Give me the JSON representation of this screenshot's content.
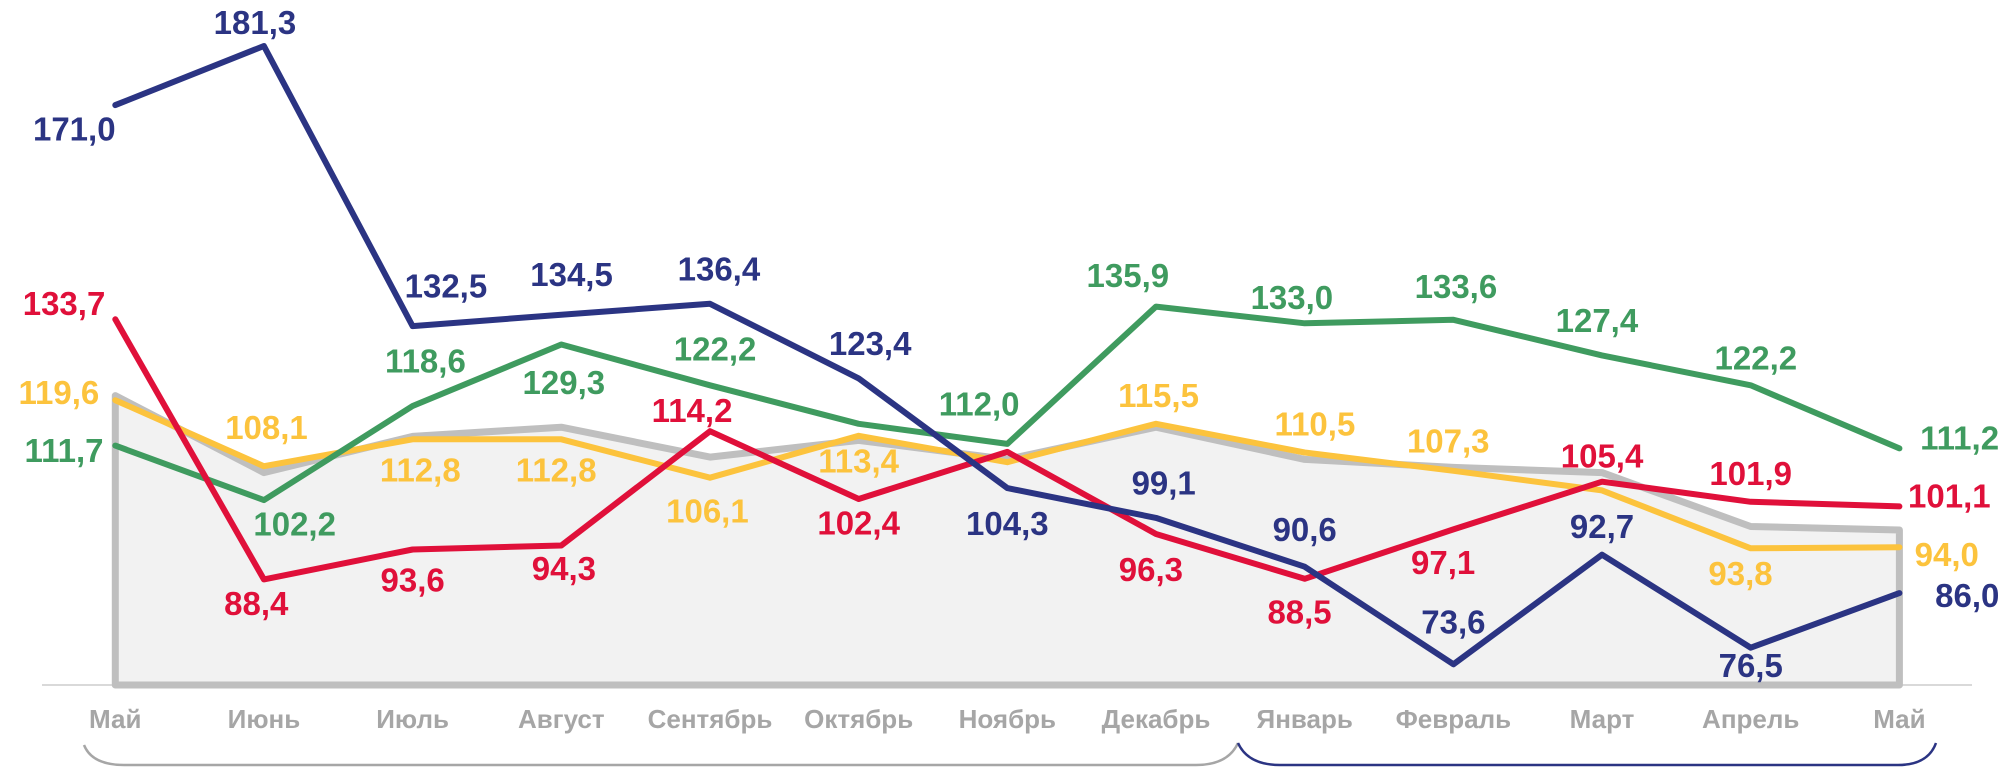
{
  "chart_data": {
    "type": "line",
    "categories": [
      "Май",
      "Июнь",
      "Июль",
      "Август",
      "Сентябрь",
      "Октябрь",
      "Ноябрь",
      "Декабрь",
      "Январь",
      "Февраль",
      "Март",
      "Апрель",
      "Май"
    ],
    "ylim": [
      70,
      190
    ],
    "series": [
      {
        "color": "#bfbfbf",
        "fill": "#f2f2f2",
        "values": [
          120.4,
          107.0,
          113.3,
          114.9,
          109.7,
          112.6,
          109.3,
          114.9,
          109.3,
          107.9,
          107.0,
          97.6,
          97.0
        ]
      },
      {
        "color": "#fcc33d",
        "values": [
          119.6,
          108.1,
          112.8,
          112.8,
          106.1,
          113.4,
          108.8,
          115.5,
          110.5,
          107.3,
          103.9,
          93.8,
          94.0
        ],
        "value_labels": [
          "119,6",
          "108,1",
          "112,8",
          "112,8",
          "106,1",
          "113,4",
          null,
          "115,5",
          "110,5",
          "107,3",
          null,
          "93,8",
          "94,0"
        ]
      },
      {
        "color": "#3f9b5f",
        "values": [
          111.7,
          102.2,
          118.6,
          129.3,
          122.2,
          115.5,
          112.0,
          135.9,
          133.0,
          133.6,
          127.4,
          122.2,
          111.2
        ],
        "value_labels": [
          "111,7",
          "102,2",
          "118,6",
          "129,3",
          "122,2",
          null,
          "112,0",
          "135,9",
          "133,0",
          "133,6",
          "127,4",
          "122,2",
          "111,2"
        ]
      },
      {
        "color": "#e0103a",
        "values": [
          133.7,
          88.4,
          93.6,
          94.3,
          114.2,
          102.4,
          110.6,
          96.3,
          88.5,
          97.1,
          105.4,
          101.9,
          101.1
        ],
        "value_labels": [
          "133,7",
          "88,4",
          "93,6",
          "94,3",
          "114,2",
          "102,4",
          null,
          "96,3",
          "88,5",
          "97,1",
          "105,4",
          "101,9",
          "101,1"
        ]
      },
      {
        "color": "#2b3483",
        "values": [
          171.0,
          181.3,
          132.5,
          134.5,
          136.4,
          123.4,
          104.3,
          99.1,
          90.6,
          73.6,
          92.7,
          76.5,
          86.0
        ],
        "value_labels": [
          "171,0",
          "181,3",
          "132,5",
          "134,5",
          "136,4",
          "123,4",
          "104,3",
          "99,1",
          "90,6",
          "73,6",
          "92,7",
          "76,5",
          "86,0"
        ]
      }
    ]
  }
}
